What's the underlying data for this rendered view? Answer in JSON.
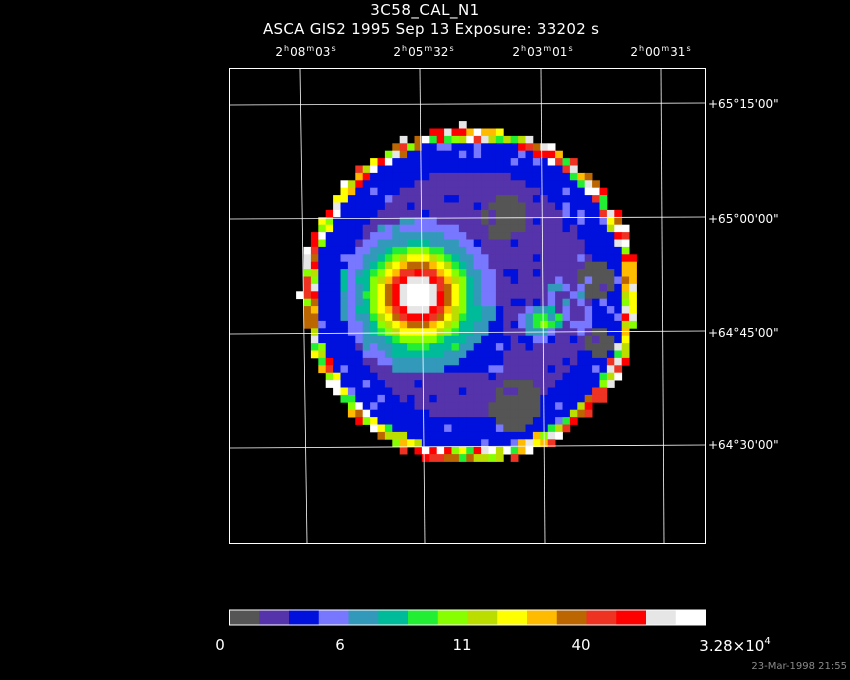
{
  "header": {
    "title": "3C58_CAL_N1",
    "subtitle": "ASCA GIS2   1995 Sep 13    Exposure: 33202 s"
  },
  "ra_labels": [
    {
      "h": "2",
      "m": "08",
      "s": "03"
    },
    {
      "h": "2",
      "m": "05",
      "s": "32"
    },
    {
      "h": "2",
      "m": "03",
      "s": "01"
    },
    {
      "h": "2",
      "m": "00",
      "s": "31"
    }
  ],
  "dec_labels": [
    "+65°15'00\"",
    "+65°00'00\"",
    "+64°45'00\"",
    "+64°30'00\""
  ],
  "colorbar": {
    "colors": [
      "#555555",
      "#5533aa",
      "#0011dd",
      "#7777ff",
      "#3399bb",
      "#00bb99",
      "#22ee33",
      "#88ff00",
      "#bbdd00",
      "#ffff00",
      "#ffbb00",
      "#bb6600",
      "#ee3322",
      "#ff0000",
      "#e6e6e6",
      "#ffffff"
    ],
    "labels": [
      "0",
      "6",
      "11",
      "40"
    ],
    "max_label": "3.28×10",
    "max_exp": "4"
  },
  "timestamp": "23-Mar-1998 21:55"
}
